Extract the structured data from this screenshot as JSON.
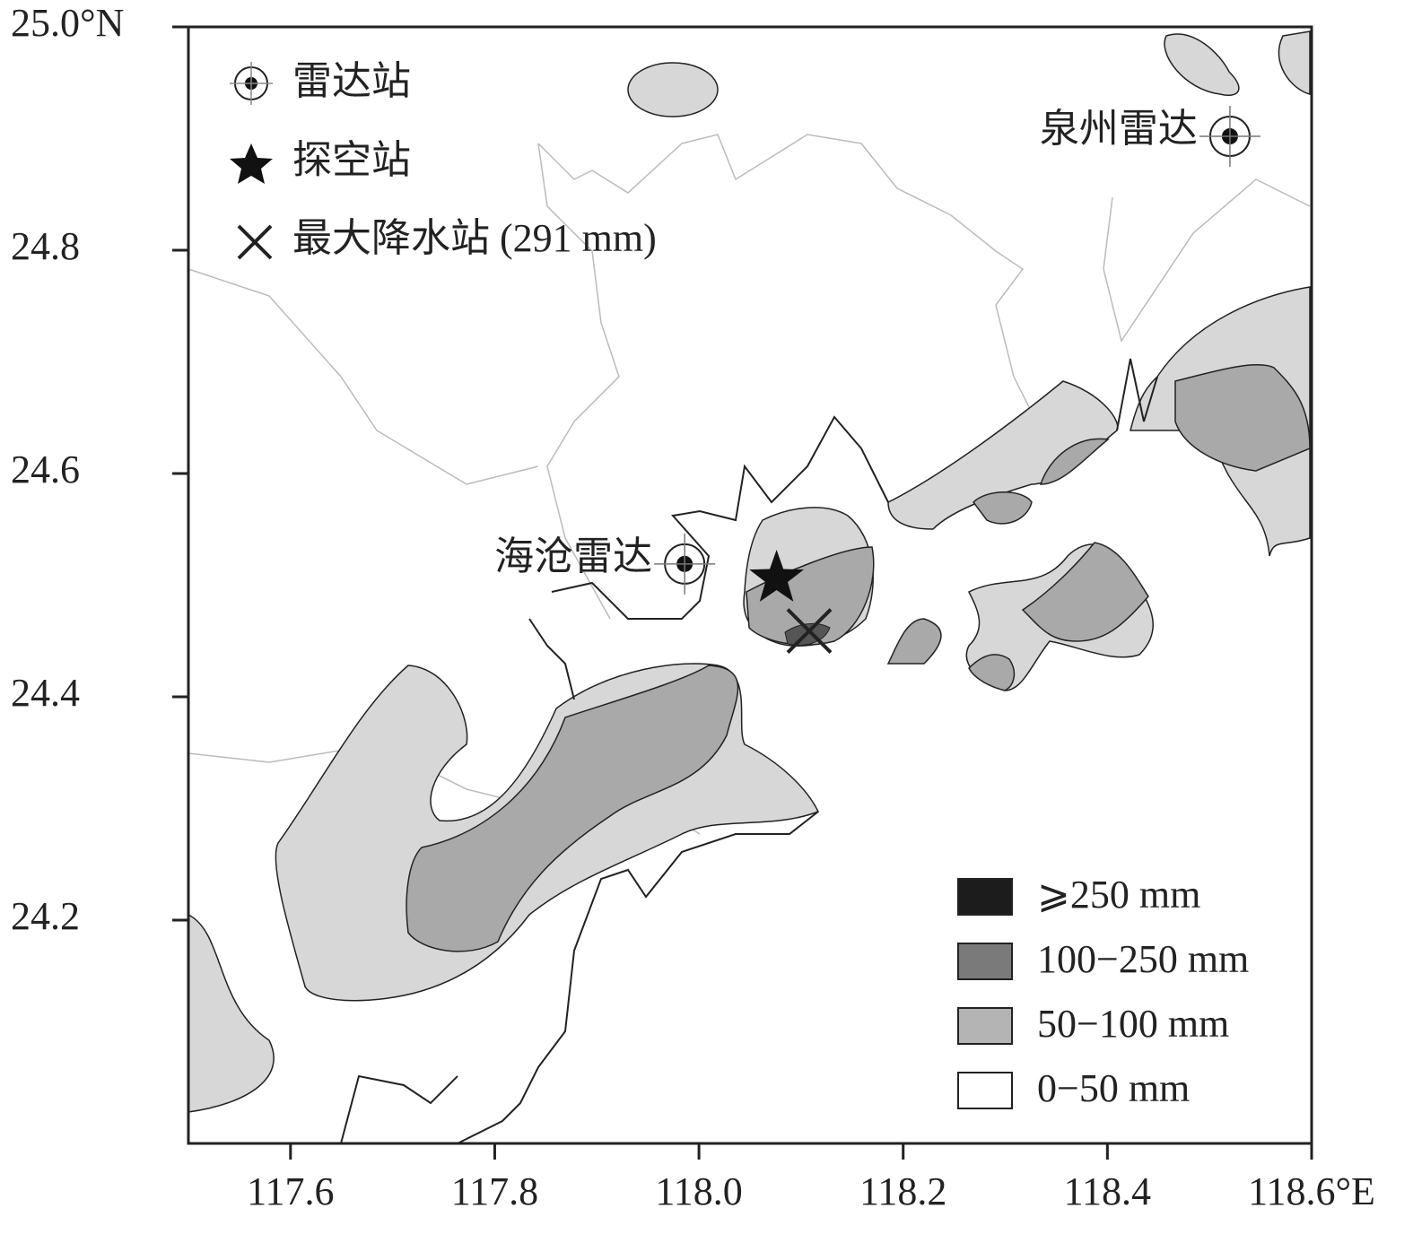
{
  "chart_data": {
    "type": "map",
    "xlim": [
      117.5,
      118.6
    ],
    "ylim": [
      24.0,
      25.0
    ],
    "xticks": [
      117.6,
      117.8,
      {
        "value": 118,
        "label": "118.0"
      },
      118.2,
      118.4,
      {
        "value": 118.6,
        "label": "118.6°E"
      }
    ],
    "yticks": [
      24.2,
      24.4,
      24.6,
      24.8,
      {
        "value": 25,
        "label": "25.0°N"
      }
    ],
    "symbol_legend": [
      "雷达站",
      "探空站",
      "最大降水站 (291 mm)"
    ],
    "radars": [
      {
        "name": "海沧雷达",
        "lon": 117.986,
        "lat": 24.519
      },
      {
        "name": "泉州雷达",
        "lon": 118.52,
        "lat": 24.902
      }
    ],
    "sounding_station": {
      "lon": 118.076,
      "lat": 24.506
    },
    "max_precip_station": {
      "lon": 118.108,
      "lat": 24.459
    },
    "rain_legend": {
      "categories": [
        "⩾250 mm",
        "100−250 mm",
        "50−100 mm",
        "0−50 mm"
      ],
      "colors": [
        "#1c1c1c",
        "#7a7a7a",
        "#b4b4b4",
        "#ffffff"
      ]
    }
  }
}
